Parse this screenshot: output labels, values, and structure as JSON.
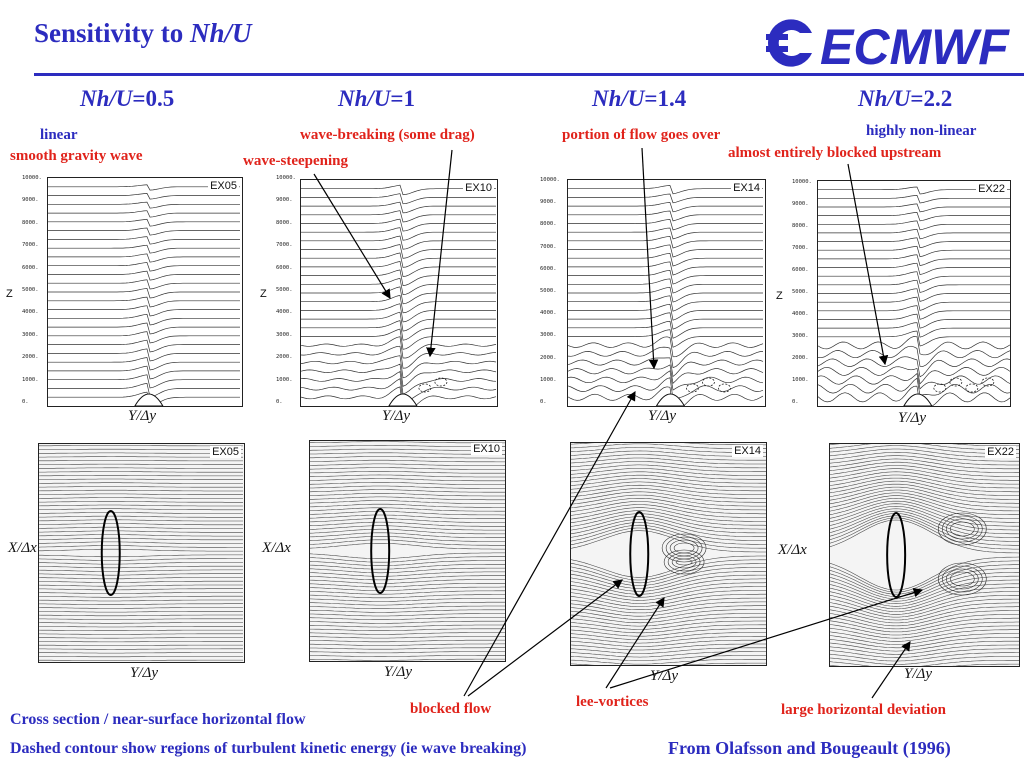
{
  "title": {
    "prefix": "Sensitivity to ",
    "italic": "Nh/U"
  },
  "logo": {
    "text": "ECMWF"
  },
  "columns": [
    {
      "nhu_italic": "Nh/U",
      "nhu_value": "=0.5",
      "experiment": "EX05"
    },
    {
      "nhu_italic": "Nh/U",
      "nhu_value": "=1",
      "experiment": "EX10"
    },
    {
      "nhu_italic": "Nh/U",
      "nhu_value": "=1.4",
      "experiment": "EX14"
    },
    {
      "nhu_italic": "Nh/U",
      "nhu_value": "=2.2",
      "experiment": "EX22"
    }
  ],
  "annotations": {
    "linear": "linear",
    "smooth_gravity_wave": "smooth gravity wave",
    "wave_breaking": "wave-breaking (some drag)",
    "wave_steepening": "wave-steepening",
    "portion_over": "portion of flow goes over",
    "highly_nonlinear": "highly non-linear",
    "blocked_upstream": "almost entirely blocked upstream",
    "blocked_flow": "blocked flow",
    "lee_vortices": "lee-vortices",
    "large_deviation": "large horizontal deviation"
  },
  "axes": {
    "z_label": "Z",
    "y_label": "Y/Δy",
    "x_label": "X/Δx",
    "z_ticks": [
      "10000.",
      "9000.",
      "8000.",
      "7000.",
      "6000.",
      "5000.",
      "4000.",
      "3000.",
      "2000.",
      "1000.",
      "0."
    ]
  },
  "footer": {
    "line1": "Cross section / near-surface horizontal flow",
    "line2": "Dashed contour show regions of turbulent kinetic energy (ie wave breaking)",
    "citation": "From Olafsson and Bougeault (1996)"
  },
  "colors": {
    "title_blue": "#2c2cbf",
    "annotation_red": "#e0231b",
    "logo_blue": "#2c2cbf"
  }
}
